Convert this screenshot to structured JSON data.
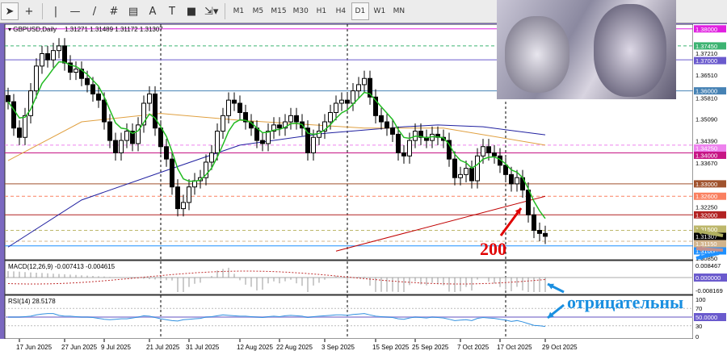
{
  "toolbar": {
    "tools": [
      "cursor-icon",
      "crosshair-icon",
      "vertical-line-icon",
      "horizontal-line-icon",
      "trendline-icon",
      "fibonacci-icon",
      "channel-icon",
      "text-icon",
      "text-label-icon",
      "rectangle-icon",
      "arrows-icon"
    ],
    "timeframes": [
      "M1",
      "M5",
      "M15",
      "M30",
      "H1",
      "H4",
      "D1",
      "W1",
      "MN"
    ],
    "active_timeframe": "D1"
  },
  "chart": {
    "symbol_label": "GBPUSD,Daily",
    "ohlc": "1.31271 1.31489 1.31172 1.31307",
    "bull_color": "#000000",
    "bear_color": "#000000"
  },
  "chart_data": {
    "type": "candlestick",
    "ylim": [
      1.3055,
      1.3815
    ],
    "dates": [
      "17 Jun 2025",
      "27 Jun 2025",
      "9 Jul 2025",
      "21 Jul 2025",
      "31 Jul 2025",
      "12 Aug 2025",
      "22 Aug 2025",
      "3 Sep 2025",
      "15 Sep 2025",
      "25 Sep 2025",
      "7 Oct 2025",
      "17 Oct 2025",
      "29 Oct 2025"
    ],
    "date_bar_index": [
      2,
      10,
      17,
      25,
      32,
      41,
      48,
      56,
      65,
      72,
      80,
      87,
      95
    ],
    "closes": [
      1.3565,
      1.348,
      1.345,
      1.352,
      1.36,
      1.368,
      1.372,
      1.37,
      1.373,
      1.3745,
      1.369,
      1.366,
      1.367,
      1.364,
      1.362,
      1.359,
      1.357,
      1.35,
      1.344,
      1.34,
      1.344,
      1.347,
      1.343,
      1.349,
      1.356,
      1.359,
      1.348,
      1.342,
      1.338,
      1.329,
      1.322,
      1.324,
      1.329,
      1.331,
      1.332,
      1.337,
      1.34,
      1.347,
      1.352,
      1.357,
      1.356,
      1.353,
      1.35,
      1.348,
      1.344,
      1.343,
      1.347,
      1.349,
      1.348,
      1.35,
      1.352,
      1.35,
      1.348,
      1.34,
      1.345,
      1.347,
      1.35,
      1.353,
      1.356,
      1.357,
      1.356,
      1.36,
      1.362,
      1.364,
      1.358,
      1.352,
      1.35,
      1.348,
      1.346,
      1.34,
      1.339,
      1.344,
      1.347,
      1.345,
      1.344,
      1.346,
      1.345,
      1.344,
      1.338,
      1.332,
      1.333,
      1.335,
      1.331,
      1.339,
      1.342,
      1.34,
      1.339,
      1.336,
      1.333,
      1.33,
      1.332,
      1.328,
      1.32,
      1.315,
      1.314,
      1.31307
    ],
    "ma_blue": [
      [
        0,
        1.3096
      ],
      [
        13,
        1.3248
      ],
      [
        27,
        1.3337
      ],
      [
        41,
        1.3425
      ],
      [
        56,
        1.3463
      ],
      [
        70,
        1.3484
      ],
      [
        76,
        1.349
      ],
      [
        84,
        1.3484
      ],
      [
        95,
        1.3458
      ]
    ],
    "ma_red": [
      [
        58,
        1.3083
      ],
      [
        95,
        1.326
      ]
    ],
    "ma_orange": [
      [
        0,
        1.3375
      ],
      [
        13,
        1.35
      ],
      [
        27,
        1.3527
      ],
      [
        41,
        1.3505
      ],
      [
        63,
        1.348
      ],
      [
        77,
        1.348
      ],
      [
        95,
        1.3425
      ]
    ],
    "price_ticks": [
      "1.37210",
      "1.36510",
      "1.35810",
      "1.35090",
      "1.34390",
      "1.33670",
      "1.32250",
      "1.30850"
    ],
    "levels": [
      {
        "price": "1.38000",
        "color": "#e020e0",
        "dash": false
      },
      {
        "price": "1.37450",
        "color": "#3cb371",
        "dash": true
      },
      {
        "price": "1.37000",
        "color": "#6a5acd",
        "dash": false
      },
      {
        "price": "1.36000",
        "color": "#4682b4",
        "dash": false
      },
      {
        "price": "1.34250",
        "color": "#ee82ee",
        "dash": true
      },
      {
        "price": "1.34000",
        "color": "#c71585",
        "dash": false
      },
      {
        "price": "1.33000",
        "color": "#a0522d",
        "dash": false
      },
      {
        "price": "1.32600",
        "color": "#fa8060",
        "dash": true
      },
      {
        "price": "1.32000",
        "color": "#b22222",
        "dash": false
      },
      {
        "price": "1.31500",
        "color": "#bdb76b",
        "dash": true
      },
      {
        "price": "1.31150",
        "color": "#d2b48c",
        "dash": true
      },
      {
        "price": "1.31000",
        "color": "#1e90ff",
        "dash": false
      }
    ],
    "current_price": "1.31307"
  },
  "macd": {
    "label": "MACD(12,26,9) -0.007413 -0.004615",
    "ticks": [
      "0.008467",
      "0.000000",
      "-0.008169"
    ]
  },
  "rsi": {
    "label": "RSI(14) 28.5178",
    "ticks": [
      "100",
      "70",
      "50.0000",
      "30",
      "0"
    ],
    "values": [
      50,
      50,
      50,
      51,
      52,
      55,
      57,
      58,
      58,
      54,
      52,
      52,
      51,
      50,
      50,
      49,
      47,
      45,
      44,
      45,
      46,
      46,
      48,
      50,
      53,
      52,
      49,
      46,
      44,
      42,
      41,
      44,
      45,
      46,
      47,
      50,
      51,
      53,
      55,
      54,
      53,
      52,
      52,
      51,
      50,
      49,
      51,
      52,
      51,
      53,
      54,
      53,
      52,
      49,
      51,
      52,
      53,
      54,
      55,
      55,
      54,
      56,
      57,
      58,
      55,
      52,
      51,
      50,
      49,
      46,
      45,
      48,
      50,
      49,
      48,
      50,
      49,
      48,
      45,
      42,
      43,
      44,
      42,
      47,
      49,
      48,
      47,
      45,
      43,
      40,
      42,
      39,
      35,
      31,
      30,
      28.5
    ]
  },
  "annotations": {
    "ma_label": "200",
    "note": "отрицательны"
  }
}
